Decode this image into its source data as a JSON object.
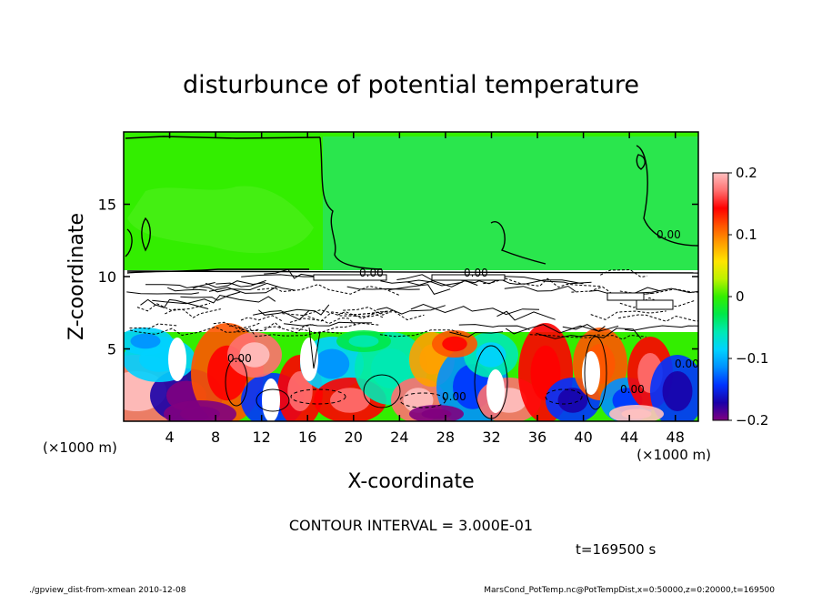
{
  "chart_data": {
    "type": "heatmap",
    "title": "disturbunce of potential temperature",
    "xlabel": "X-coordinate",
    "ylabel": "Z-coordinate",
    "x_unit_label": "(×1000 m)",
    "z_unit_label": "(×1000 m)",
    "xlim": [
      0,
      50
    ],
    "zlim": [
      0,
      20
    ],
    "x_ticks": [
      4,
      8,
      12,
      16,
      20,
      24,
      28,
      32,
      36,
      40,
      44,
      48
    ],
    "z_ticks": [
      5,
      10,
      15
    ],
    "colorbar": {
      "range": [
        -0.2,
        0.2
      ],
      "ticks": [
        0.2,
        0.1,
        0,
        -0.1,
        -0.2
      ],
      "tick_labels": [
        "0.2",
        "0.1",
        "0",
        "−0.1",
        "−0.2"
      ],
      "colors": [
        "#800080",
        "#1a00a8",
        "#0033ff",
        "#0090ff",
        "#00d2ff",
        "#00e9b4",
        "#00e84a",
        "#33ee00",
        "#bdf200",
        "#ffe400",
        "#ffa000",
        "#ff5500",
        "#ff0000",
        "#ff7070",
        "#ffc0c0"
      ]
    },
    "regions": [
      {
        "z_range": [
          10.5,
          20
        ],
        "value": 0.0,
        "description": "upper quiescent layer"
      },
      {
        "z_range": [
          6,
          10.5
        ],
        "value": 0.0,
        "description": "dense contour band"
      },
      {
        "z_range": [
          0,
          6
        ],
        "value_range": [
          -0.2,
          0.2
        ],
        "description": "convective layer"
      }
    ],
    "contour_labels": [
      "0.00",
      "0.00",
      "0.00",
      "0.00",
      "0.00",
      "0.00",
      "0.00"
    ],
    "contour_interval_text": "CONTOUR INTERVAL = 3.000E-01",
    "time_text": "t=169500 s"
  },
  "footer": {
    "left": "./gpview_dist-from-xmean  2010-12-08",
    "right": "MarsCond_PotTemp.nc@PotTempDist,x=0:50000,z=0:20000,t=169500"
  }
}
